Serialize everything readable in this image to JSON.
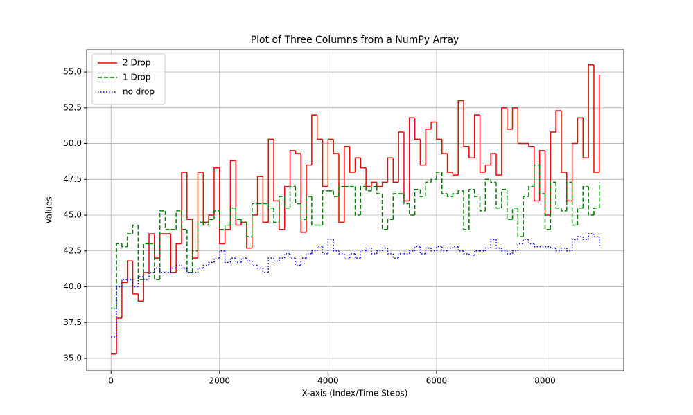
{
  "chart_data": {
    "type": "step",
    "title": "Plot of Three Columns from a NumPy Array",
    "xlabel": "X-axis (Index/Time Steps)",
    "ylabel": "Values",
    "xlim": [
      -450,
      9450
    ],
    "ylim": [
      34.13,
      56.55
    ],
    "xticks": [
      0,
      2000,
      4000,
      6000,
      8000
    ],
    "yticks": [
      {
        "value": 35,
        "label": "35.0"
      },
      37.5,
      {
        "value": 40,
        "label": "40.0"
      },
      42.5,
      {
        "value": 45,
        "label": "45.0"
      },
      47.5,
      {
        "value": 50,
        "label": "50.0"
      },
      52.5,
      {
        "value": 55,
        "label": "55.0"
      }
    ],
    "grid": true,
    "legend": "upper-left",
    "x": [
      0,
      100,
      200,
      300,
      400,
      500,
      600,
      700,
      800,
      900,
      1000,
      1100,
      1200,
      1300,
      1400,
      1500,
      1600,
      1700,
      1800,
      1900,
      2000,
      2100,
      2200,
      2300,
      2400,
      2500,
      2600,
      2700,
      2800,
      2900,
      3000,
      3100,
      3200,
      3300,
      3400,
      3500,
      3600,
      3700,
      3800,
      3900,
      4000,
      4100,
      4200,
      4300,
      4400,
      4500,
      4600,
      4700,
      4800,
      4900,
      5000,
      5100,
      5200,
      5300,
      5400,
      5500,
      5600,
      5700,
      5800,
      5900,
      6000,
      6100,
      6200,
      6300,
      6400,
      6500,
      6600,
      6700,
      6800,
      6900,
      7000,
      7100,
      7200,
      7300,
      7400,
      7500,
      7600,
      7700,
      7800,
      7900,
      8000,
      8100,
      8200,
      8300,
      8400,
      8500,
      8600,
      8700,
      8800,
      8900,
      9000
    ],
    "series": [
      {
        "name": "2 Drop",
        "color": "#ff0000",
        "linestyle": "solid",
        "values": [
          35.3,
          37.8,
          40.3,
          41.8,
          39.5,
          39.0,
          41.0,
          43.7,
          42.0,
          43.7,
          43.7,
          41.0,
          43.0,
          48.0,
          44.7,
          42.0,
          48.0,
          44.5,
          45.0,
          48.3,
          43.0,
          44.0,
          48.8,
          44.3,
          44.5,
          42.7,
          45.0,
          47.7,
          44.5,
          50.3,
          46.0,
          44.0,
          47.0,
          49.5,
          49.3,
          43.8,
          48.5,
          52.0,
          50.3,
          47.0,
          50.3,
          49.3,
          44.5,
          49.8,
          48.0,
          49.0,
          48.3,
          47.0,
          47.3,
          47.0,
          47.3,
          49.0,
          47.3,
          50.8,
          46.0,
          51.8,
          50.3,
          48.5,
          51.0,
          51.5,
          50.3,
          49.3,
          48.0,
          47.8,
          53.0,
          49.8,
          49.0,
          52.0,
          48.0,
          48.5,
          49.3,
          47.8,
          52.5,
          51.0,
          52.5,
          50.0,
          50.0,
          49.8,
          46.0,
          49.5,
          45.0,
          50.8,
          52.3,
          48.0,
          46.0,
          50.0,
          51.8,
          49.0,
          55.5,
          48.0,
          54.8
        ]
      },
      {
        "name": "1 Drop",
        "color": "#008000",
        "linestyle": "dashed",
        "values": [
          38.5,
          43.0,
          42.8,
          43.7,
          44.3,
          40.5,
          43.0,
          43.0,
          40.5,
          45.3,
          44.0,
          44.0,
          45.3,
          44.0,
          41.0,
          42.5,
          44.5,
          44.3,
          44.7,
          45.3,
          44.0,
          44.3,
          45.5,
          44.7,
          44.5,
          43.5,
          45.8,
          45.8,
          45.8,
          45.5,
          44.5,
          46.3,
          45.5,
          47.0,
          45.8,
          44.7,
          46.3,
          44.3,
          44.3,
          46.7,
          46.7,
          46.3,
          47.0,
          47.0,
          47.0,
          45.0,
          47.0,
          46.7,
          47.0,
          46.5,
          44.0,
          44.7,
          46.5,
          46.5,
          45.8,
          45.0,
          46.8,
          46.3,
          47.3,
          47.5,
          48.0,
          46.5,
          46.3,
          46.5,
          46.7,
          44.0,
          46.8,
          46.3,
          45.3,
          47.5,
          47.3,
          45.5,
          46.8,
          44.7,
          45.5,
          43.5,
          46.3,
          47.0,
          48.5,
          46.5,
          44.0,
          47.3,
          45.5,
          45.3,
          47.3,
          44.3,
          45.5,
          47.0,
          45.0,
          45.5,
          47.3
        ]
      },
      {
        "name": "no drop",
        "color": "#0000ff",
        "linestyle": "dotted",
        "values": [
          36.5,
          40.0,
          40.5,
          40.5,
          40.0,
          40.7,
          40.5,
          41.0,
          41.3,
          41.0,
          41.0,
          41.3,
          41.5,
          41.3,
          41.0,
          41.0,
          41.3,
          41.5,
          41.7,
          42.0,
          42.5,
          41.7,
          42.0,
          41.7,
          42.0,
          41.8,
          41.5,
          41.3,
          41.0,
          42.0,
          41.8,
          42.0,
          42.3,
          42.0,
          41.5,
          42.0,
          42.3,
          42.5,
          42.8,
          42.3,
          43.3,
          42.5,
          42.3,
          42.0,
          42.3,
          42.0,
          42.5,
          42.7,
          42.3,
          42.5,
          42.7,
          42.3,
          42.0,
          42.3,
          42.3,
          42.5,
          42.8,
          42.3,
          42.7,
          42.5,
          42.8,
          42.5,
          42.7,
          42.8,
          42.5,
          42.3,
          42.2,
          42.5,
          42.5,
          42.7,
          43.3,
          42.7,
          42.5,
          42.3,
          42.5,
          43.0,
          43.3,
          43.0,
          42.8,
          42.8,
          42.8,
          42.7,
          42.5,
          42.7,
          42.5,
          43.3,
          43.5,
          43.3,
          43.7,
          43.5,
          42.8
        ]
      }
    ]
  }
}
